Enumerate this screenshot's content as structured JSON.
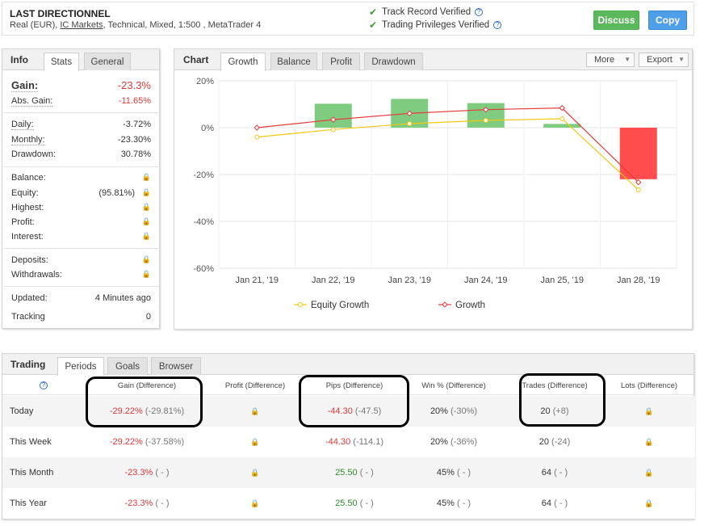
{
  "header": {
    "title": "LAST DIRECTIONNEL",
    "subtitle_prefix": "Real (EUR), ",
    "broker_link": "IC Markets",
    "subtitle_suffix": ", Technical, Mixed, 1:500 , MetaTrader 4",
    "verify": [
      "Track Record Verified",
      "Trading Privileges Verified"
    ],
    "discuss_label": "Discuss",
    "copy_label": "Copy"
  },
  "info": {
    "title": "Info",
    "tabs": [
      "Stats",
      "General"
    ],
    "gain_label": "Gain:",
    "gain_value": "-23.3%",
    "abs_gain_label": "Abs. Gain:",
    "abs_gain_value": "-11.65%",
    "daily_label": "Daily:",
    "daily_value": "-3.72%",
    "monthly_label": "Monthly:",
    "monthly_value": "-23.30%",
    "drawdown_label": "Drawdown:",
    "drawdown_value": "30.78%",
    "balance_label": "Balance:",
    "equity_label": "Equity:",
    "equity_pct": "(95.81%)",
    "highest_label": "Highest:",
    "profit_label": "Profit:",
    "interest_label": "Interest:",
    "deposits_label": "Deposits:",
    "withdrawals_label": "Withdrawals:",
    "updated_label": "Updated:",
    "updated_value": "4 Minutes ago",
    "tracking_label": "Tracking",
    "tracking_value": "0",
    "lock_icon": "lock-icon"
  },
  "chart_panel": {
    "title": "Chart",
    "tabs": [
      "Growth",
      "Balance",
      "Profit",
      "Drawdown"
    ],
    "more_label": "More",
    "export_label": "Export"
  },
  "chart_data": {
    "type": "bar",
    "categories": [
      "Jan 21, '19",
      "Jan 22, '19",
      "Jan 23, '19",
      "Jan 24, '19",
      "Jan 25, '19",
      "Jan 28, '19"
    ],
    "bar_values": [
      0,
      10.2,
      12.3,
      10.5,
      1.6,
      -22.0
    ],
    "series": [
      {
        "name": "Equity Growth",
        "type": "line",
        "color": "#f2c811",
        "values": [
          -4.0,
          -0.8,
          1.7,
          3.1,
          3.8,
          -26.5
        ]
      },
      {
        "name": "Growth",
        "type": "line",
        "color": "#e53b3b",
        "values": [
          0.0,
          3.4,
          6.1,
          7.7,
          8.4,
          -23.3
        ]
      }
    ],
    "yticks": [
      "20%",
      "0%",
      "-20%",
      "-40%",
      "-60%"
    ],
    "ylim": [
      -60,
      20
    ],
    "bar_colors": {
      "positive": "#7fcb7f",
      "negative": "#ff4d4d"
    },
    "legend_position": "bottom",
    "grid": true
  },
  "trading": {
    "title": "Trading",
    "tabs": [
      "Periods",
      "Goals",
      "Browser"
    ],
    "headers": [
      "Gain (Difference)",
      "Profit (Difference)",
      "Pips (Difference)",
      "Win % (Difference)",
      "Trades (Difference)",
      "Lots (Difference)"
    ],
    "rows": [
      {
        "period": "Today",
        "gain": "-29.22%",
        "gain_diff": "(-29.81%)",
        "pips": "-44.30",
        "pips_diff": "(-47.5)",
        "win": "20%",
        "win_diff": "(-30%)",
        "trades": "20",
        "trades_diff": "(+8)"
      },
      {
        "period": "This Week",
        "gain": "-29.22%",
        "gain_diff": "(-37.58%)",
        "pips": "-44.30",
        "pips_diff": "(-114.1)",
        "win": "20%",
        "win_diff": "(-36%)",
        "trades": "20",
        "trades_diff": "(-24)"
      },
      {
        "period": "This Month",
        "gain": "-23.3%",
        "gain_diff": "( - )",
        "pips": "25.50",
        "pips_diff": "( - )",
        "win": "45%",
        "win_diff": "( - )",
        "trades": "64",
        "trades_diff": "( - )"
      },
      {
        "period": "This Year",
        "gain": "-23.3%",
        "gain_diff": "( - )",
        "pips": "25.50",
        "pips_diff": "( - )",
        "win": "45%",
        "win_diff": "( - )",
        "trades": "64",
        "trades_diff": "( - )"
      }
    ],
    "pips_colors": {
      "negative": "#d93a3a",
      "positive": "#2f8f2f"
    }
  }
}
